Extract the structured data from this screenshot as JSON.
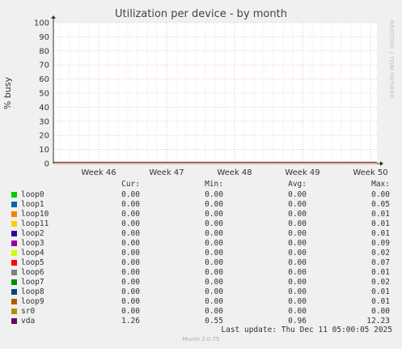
{
  "title": "Utilization per device - by month",
  "side_label": "RRDTOOL / TOBI OETIKER",
  "footer": "Munin 2.0.75",
  "last_update": "Last update: Thu Dec 11 05:00:05 2025",
  "legend_headers": {
    "cur": "Cur:",
    "min": "Min:",
    "avg": "Avg:",
    "max": "Max:"
  },
  "chart_data": {
    "type": "line",
    "title": "Utilization per device - by month",
    "ylabel": "% busy",
    "ylim": [
      0,
      100
    ],
    "yticks": [
      0,
      10,
      20,
      30,
      40,
      50,
      60,
      70,
      80,
      90,
      100
    ],
    "xticks": [
      "Week 46",
      "Week 47",
      "Week 48",
      "Week 49",
      "Week 50"
    ],
    "grid": true,
    "series": [
      {
        "name": "loop0",
        "color": "#00cc00",
        "cur": "0.00",
        "min": "0.00",
        "avg": "0.00",
        "max": "0.00"
      },
      {
        "name": "loop1",
        "color": "#0066b3",
        "cur": "0.00",
        "min": "0.00",
        "avg": "0.00",
        "max": "0.05"
      },
      {
        "name": "loop10",
        "color": "#ff8000",
        "cur": "0.00",
        "min": "0.00",
        "avg": "0.00",
        "max": "0.01"
      },
      {
        "name": "loop11",
        "color": "#ffcc00",
        "cur": "0.00",
        "min": "0.00",
        "avg": "0.00",
        "max": "0.01"
      },
      {
        "name": "loop2",
        "color": "#330099",
        "cur": "0.00",
        "min": "0.00",
        "avg": "0.00",
        "max": "0.01"
      },
      {
        "name": "loop3",
        "color": "#990099",
        "cur": "0.00",
        "min": "0.00",
        "avg": "0.00",
        "max": "0.09"
      },
      {
        "name": "loop4",
        "color": "#ccff00",
        "cur": "0.00",
        "min": "0.00",
        "avg": "0.00",
        "max": "0.02"
      },
      {
        "name": "loop5",
        "color": "#ff0000",
        "cur": "0.00",
        "min": "0.00",
        "avg": "0.00",
        "max": "0.07"
      },
      {
        "name": "loop6",
        "color": "#808080",
        "cur": "0.00",
        "min": "0.00",
        "avg": "0.00",
        "max": "0.01"
      },
      {
        "name": "loop7",
        "color": "#008f00",
        "cur": "0.00",
        "min": "0.00",
        "avg": "0.00",
        "max": "0.02"
      },
      {
        "name": "loop8",
        "color": "#00487d",
        "cur": "0.00",
        "min": "0.00",
        "avg": "0.00",
        "max": "0.01"
      },
      {
        "name": "loop9",
        "color": "#b35a00",
        "cur": "0.00",
        "min": "0.00",
        "avg": "0.00",
        "max": "0.01"
      },
      {
        "name": "sr0",
        "color": "#b38f00",
        "cur": "0.00",
        "min": "0.00",
        "avg": "0.00",
        "max": "0.00"
      },
      {
        "name": "vda",
        "color": "#6b006b",
        "cur": "1.26",
        "min": "0.55",
        "avg": "0.96",
        "max": "12.23"
      }
    ]
  }
}
